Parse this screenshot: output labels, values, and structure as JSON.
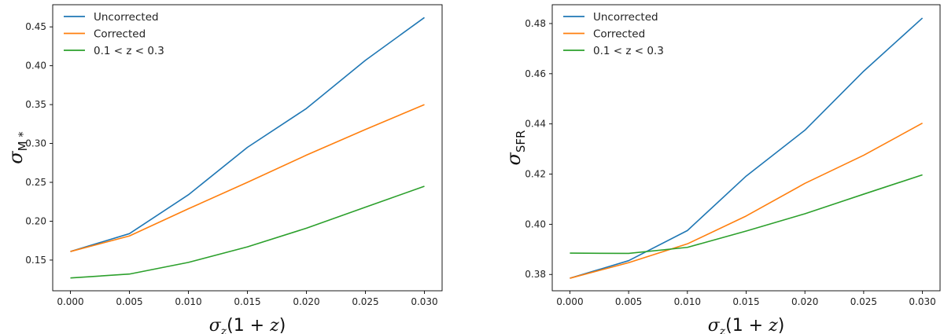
{
  "chart_data": [
    {
      "type": "line",
      "title": "",
      "xlabel": "σ_z(1 + z)",
      "ylabel": "σ_M*",
      "x": [
        0.0,
        0.005,
        0.01,
        0.015,
        0.02,
        0.025,
        0.03
      ],
      "xticks": [
        "0.000",
        "0.005",
        "0.010",
        "0.015",
        "0.020",
        "0.025",
        "0.030"
      ],
      "yticks": [
        "0.15",
        "0.20",
        "0.25",
        "0.30",
        "0.35",
        "0.40",
        "0.45"
      ],
      "xlim": [
        -0.0015,
        0.0315
      ],
      "ylim": [
        0.1105,
        0.4785
      ],
      "legend_position": "top-left",
      "grid": false,
      "series": [
        {
          "name": "Uncorrected",
          "color": "#1f77b4",
          "values": [
            0.161,
            0.184,
            0.234,
            0.295,
            0.345,
            0.407,
            0.462
          ]
        },
        {
          "name": "Corrected",
          "color": "#ff7f0e",
          "values": [
            0.161,
            0.181,
            0.216,
            0.25,
            0.285,
            0.318,
            0.35
          ]
        },
        {
          "name": "0.1 < z < 0.3",
          "color": "#2ca02c",
          "values": [
            0.127,
            0.132,
            0.147,
            0.167,
            0.191,
            0.218,
            0.245
          ]
        }
      ]
    },
    {
      "type": "line",
      "title": "",
      "xlabel": "σ_z(1 + z)",
      "ylabel": "σ_SFR",
      "x": [
        0.0,
        0.005,
        0.01,
        0.015,
        0.02,
        0.025,
        0.03
      ],
      "xticks": [
        "0.000",
        "0.005",
        "0.010",
        "0.015",
        "0.020",
        "0.025",
        "0.030"
      ],
      "yticks": [
        "0.38",
        "0.40",
        "0.42",
        "0.44",
        "0.46",
        "0.48"
      ],
      "xlim": [
        -0.0015,
        0.0315
      ],
      "ylim": [
        0.3735,
        0.4875
      ],
      "legend_position": "top-left",
      "grid": false,
      "series": [
        {
          "name": "Uncorrected",
          "color": "#1f77b4",
          "values": [
            0.3785,
            0.3855,
            0.3975,
            0.4192,
            0.4375,
            0.461,
            0.4822
          ]
        },
        {
          "name": "Corrected",
          "color": "#ff7f0e",
          "values": [
            0.3785,
            0.3847,
            0.3922,
            0.4033,
            0.4163,
            0.4275,
            0.4403
          ]
        },
        {
          "name": "0.1 < z < 0.3",
          "color": "#2ca02c",
          "values": [
            0.3885,
            0.3884,
            0.3908,
            0.3973,
            0.4042,
            0.412,
            0.4197
          ]
        }
      ]
    }
  ]
}
